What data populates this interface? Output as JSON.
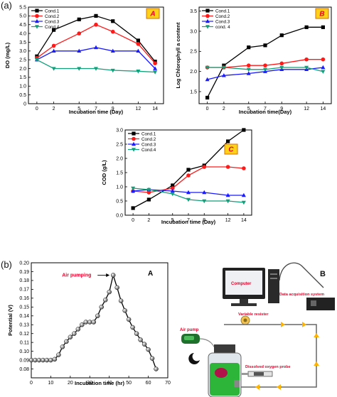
{
  "panel_labels": {
    "a": "(a)",
    "b": "(b)"
  },
  "chart_data": [
    {
      "id": "A",
      "type": "line",
      "badge": "A",
      "xlabel": "Incubation time (Day)",
      "ylabel": "DO (mg/L)",
      "x": [
        0,
        2,
        5,
        7,
        9,
        12,
        14
      ],
      "xticks": [
        0,
        2,
        5,
        7,
        9,
        12,
        14
      ],
      "ylim": [
        0,
        5.5
      ],
      "yticks": [
        0,
        0.5,
        1.0,
        1.5,
        2.0,
        2.5,
        3.0,
        3.5,
        4.0,
        4.5,
        5.0,
        5.5
      ],
      "ytick_labels": [
        "0",
        "0.5",
        "1.0",
        "1.5",
        "2.0",
        "2.5",
        "3.0",
        "3.5",
        "4.0",
        "4.5",
        "5.0",
        "5.5"
      ],
      "legend_position": "top-left",
      "series": [
        {
          "name": "Cond.1",
          "color": "#000000",
          "marker": "square",
          "values": [
            2.7,
            4.2,
            4.8,
            5.0,
            4.7,
            3.6,
            2.4
          ]
        },
        {
          "name": "Cond.2",
          "color": "#ff1a1a",
          "marker": "circle",
          "values": [
            2.6,
            3.3,
            4.0,
            4.5,
            4.1,
            3.4,
            2.3
          ]
        },
        {
          "name": "Cond.3",
          "color": "#1a1aff",
          "marker": "triangle-up",
          "values": [
            2.5,
            3.0,
            3.0,
            3.2,
            3.0,
            3.0,
            2.0
          ]
        },
        {
          "name": "Cond.4",
          "color": "#11a07a",
          "marker": "triangle-down",
          "values": [
            2.5,
            2.0,
            2.0,
            2.0,
            1.9,
            1.85,
            1.8
          ]
        }
      ]
    },
    {
      "id": "B",
      "type": "line",
      "badge": "B",
      "xlabel": "Incubation time(Day)",
      "ylabel": "Log Chlorophyll a content",
      "x": [
        0,
        2,
        5,
        7,
        9,
        12,
        14
      ],
      "xticks": [
        0,
        2,
        5,
        7,
        9,
        12,
        14
      ],
      "ylim": [
        1.2,
        3.6
      ],
      "yticks": [
        1.5,
        2.0,
        2.5,
        3.0,
        3.5
      ],
      "ytick_labels": [
        "1.5",
        "2.0",
        "2.5",
        "3.0",
        "3.5"
      ],
      "legend_position": "top-left",
      "series": [
        {
          "name": "Cond.1",
          "color": "#000000",
          "marker": "square",
          "values": [
            1.35,
            2.15,
            2.6,
            2.65,
            2.9,
            3.1,
            3.1
          ]
        },
        {
          "name": "Cond.2",
          "color": "#ff1a1a",
          "marker": "circle",
          "values": [
            2.1,
            2.1,
            2.15,
            2.15,
            2.2,
            2.3,
            2.3
          ]
        },
        {
          "name": "Cond.3",
          "color": "#1a1aff",
          "marker": "triangle-up",
          "values": [
            1.8,
            1.9,
            1.95,
            2.0,
            2.05,
            2.05,
            2.1
          ]
        },
        {
          "name": "cond. 4",
          "color": "#11a07a",
          "marker": "triangle-down",
          "values": [
            2.1,
            2.1,
            2.05,
            2.05,
            2.1,
            2.1,
            2.0
          ]
        }
      ]
    },
    {
      "id": "C",
      "type": "line",
      "badge": "C",
      "xlabel": "Incubation time (Day)",
      "ylabel": "COD (g/L)",
      "x": [
        0,
        2,
        5,
        7,
        9,
        12,
        14
      ],
      "xticks": [
        0,
        2,
        5,
        7,
        9,
        12,
        14
      ],
      "ylim": [
        0,
        3.0
      ],
      "yticks": [
        0,
        0.5,
        1.0,
        1.5,
        2.0,
        2.5,
        3.0
      ],
      "ytick_labels": [
        "0.0",
        "0.5",
        "1.0",
        "1.5",
        "2.0",
        "2.5",
        "3.0"
      ],
      "legend_position": "top-left",
      "series": [
        {
          "name": "Cond.1",
          "color": "#000000",
          "marker": "square",
          "values": [
            0.25,
            0.55,
            1.05,
            1.6,
            1.75,
            2.6,
            3.0
          ]
        },
        {
          "name": "Cond.2",
          "color": "#ff1a1a",
          "marker": "circle",
          "values": [
            0.85,
            0.8,
            0.95,
            1.4,
            1.7,
            1.7,
            1.65
          ]
        },
        {
          "name": "Cond.3",
          "color": "#1a1aff",
          "marker": "triangle-up",
          "values": [
            0.85,
            0.9,
            0.85,
            0.8,
            0.8,
            0.7,
            0.7
          ]
        },
        {
          "name": "Cond.4",
          "color": "#11a07a",
          "marker": "triangle-down",
          "values": [
            0.95,
            0.9,
            0.75,
            0.55,
            0.5,
            0.5,
            0.45
          ]
        }
      ]
    },
    {
      "id": "D",
      "type": "line",
      "badge": "A",
      "xlabel": "Incubation time (hr)",
      "ylabel": "Potential (V)",
      "annotation": "Air pumping",
      "annotation_x": 42,
      "xlim": [
        0,
        70
      ],
      "xticks": [
        0,
        10,
        20,
        30,
        40,
        50,
        60,
        70
      ],
      "ylim": [
        0.07,
        0.2
      ],
      "yticks": [
        0.08,
        0.09,
        0.1,
        0.11,
        0.12,
        0.13,
        0.14,
        0.15,
        0.16,
        0.17,
        0.18,
        0.19,
        0.2
      ],
      "ytick_labels": [
        "0.08",
        "0.09",
        "0.10",
        "0.11",
        "0.12",
        "0.13",
        "0.14",
        "0.15",
        "0.16",
        "0.17",
        "0.18",
        "0.19",
        "0.20"
      ],
      "series": [
        {
          "name": "",
          "color": "#000000",
          "marker": "sphere",
          "x": [
            0,
            2,
            4,
            6,
            8,
            10,
            12,
            14,
            16,
            18,
            20,
            22,
            24,
            26,
            28,
            30,
            32,
            34,
            36,
            38,
            40,
            42,
            44,
            46,
            48,
            50,
            52,
            54,
            56,
            58,
            60,
            62,
            64
          ],
          "values": [
            0.09,
            0.09,
            0.09,
            0.09,
            0.09,
            0.09,
            0.091,
            0.096,
            0.105,
            0.111,
            0.116,
            0.12,
            0.125,
            0.13,
            0.133,
            0.133,
            0.133,
            0.14,
            0.15,
            0.158,
            0.167,
            0.186,
            0.172,
            0.157,
            0.146,
            0.136,
            0.127,
            0.12,
            0.113,
            0.108,
            0.102,
            0.092,
            0.08
          ]
        }
      ]
    }
  ],
  "diagram": {
    "badge": "B",
    "labels": {
      "computer": "Computer",
      "data_acquisition": "Data acquisition system",
      "variable_resistor": "Variable resister",
      "air_pump": "Air pump",
      "do_probe": "Dissolved oxygen probe"
    },
    "colors": {
      "label_red": "#e8002a",
      "wire": "#555555",
      "jar_green": "#2db53a",
      "arrow": "#ffb300"
    }
  }
}
